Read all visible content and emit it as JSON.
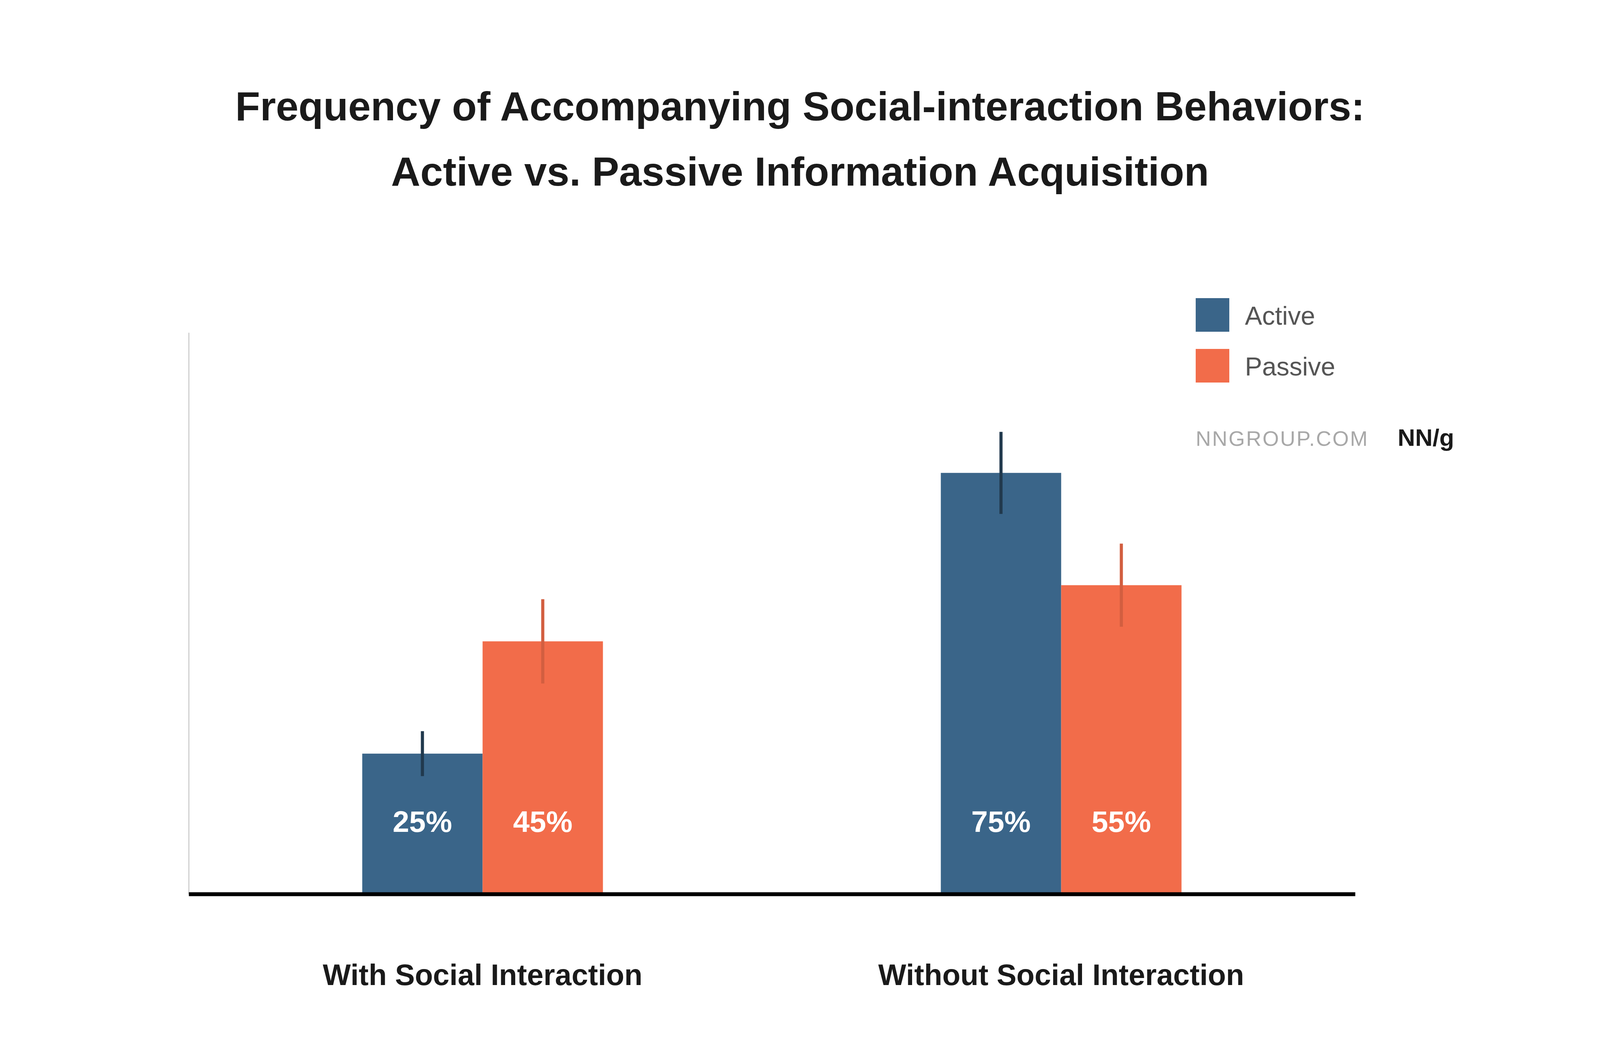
{
  "chart_data": {
    "type": "bar",
    "title": "Frequency of Accompanying Social-interaction Behaviors: Active vs. Passive Information Acquisition",
    "categories": [
      "With Social Interaction",
      "Without Social Interaction"
    ],
    "series": [
      {
        "name": "Active",
        "color": "#3a6589",
        "values": [
          25,
          75
        ],
        "value_labels": [
          "25%",
          "75%"
        ],
        "errors": [
          4,
          7.3
        ]
      },
      {
        "name": "Passive",
        "color": "#f26c4a",
        "values": [
          45,
          55
        ],
        "value_labels": [
          "45%",
          "55%"
        ],
        "errors": [
          7.5,
          7.4
        ]
      }
    ],
    "ylim": [
      0,
      100
    ],
    "tick_labels": "x",
    "data_labels": true,
    "legend": "top-right",
    "annotations": [
      "NNGROUP.COM",
      "NN/g"
    ]
  }
}
